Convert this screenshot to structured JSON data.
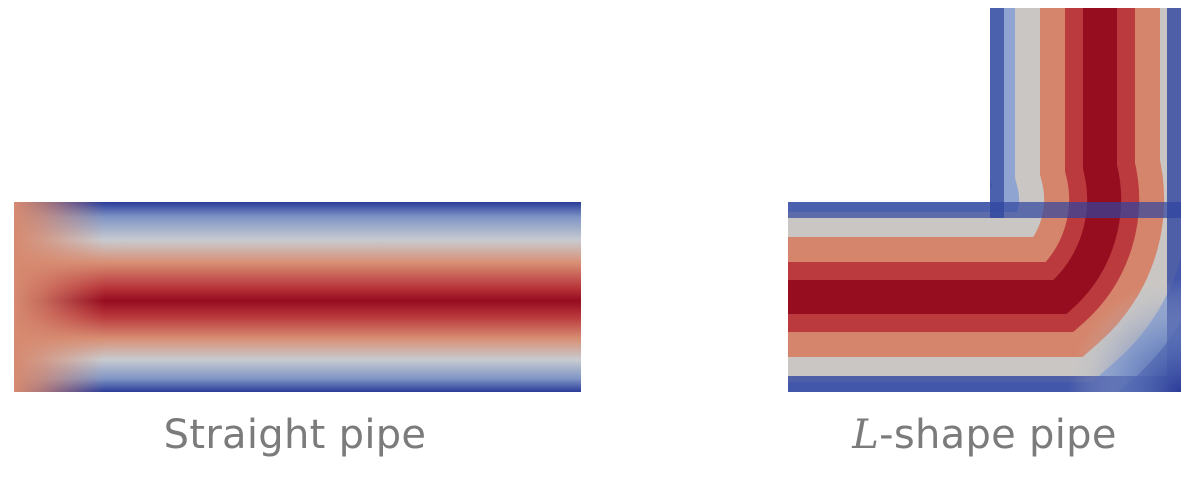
{
  "panels": [
    {
      "id": "straight",
      "caption": "Straight pipe"
    },
    {
      "id": "lshape",
      "caption_math": "L",
      "caption_rest": "-shape pipe"
    }
  ],
  "colors": {
    "low": "#2d3f9c",
    "mid": "#c3cdd6",
    "warm": "#d6836a",
    "high": "#970d20"
  }
}
